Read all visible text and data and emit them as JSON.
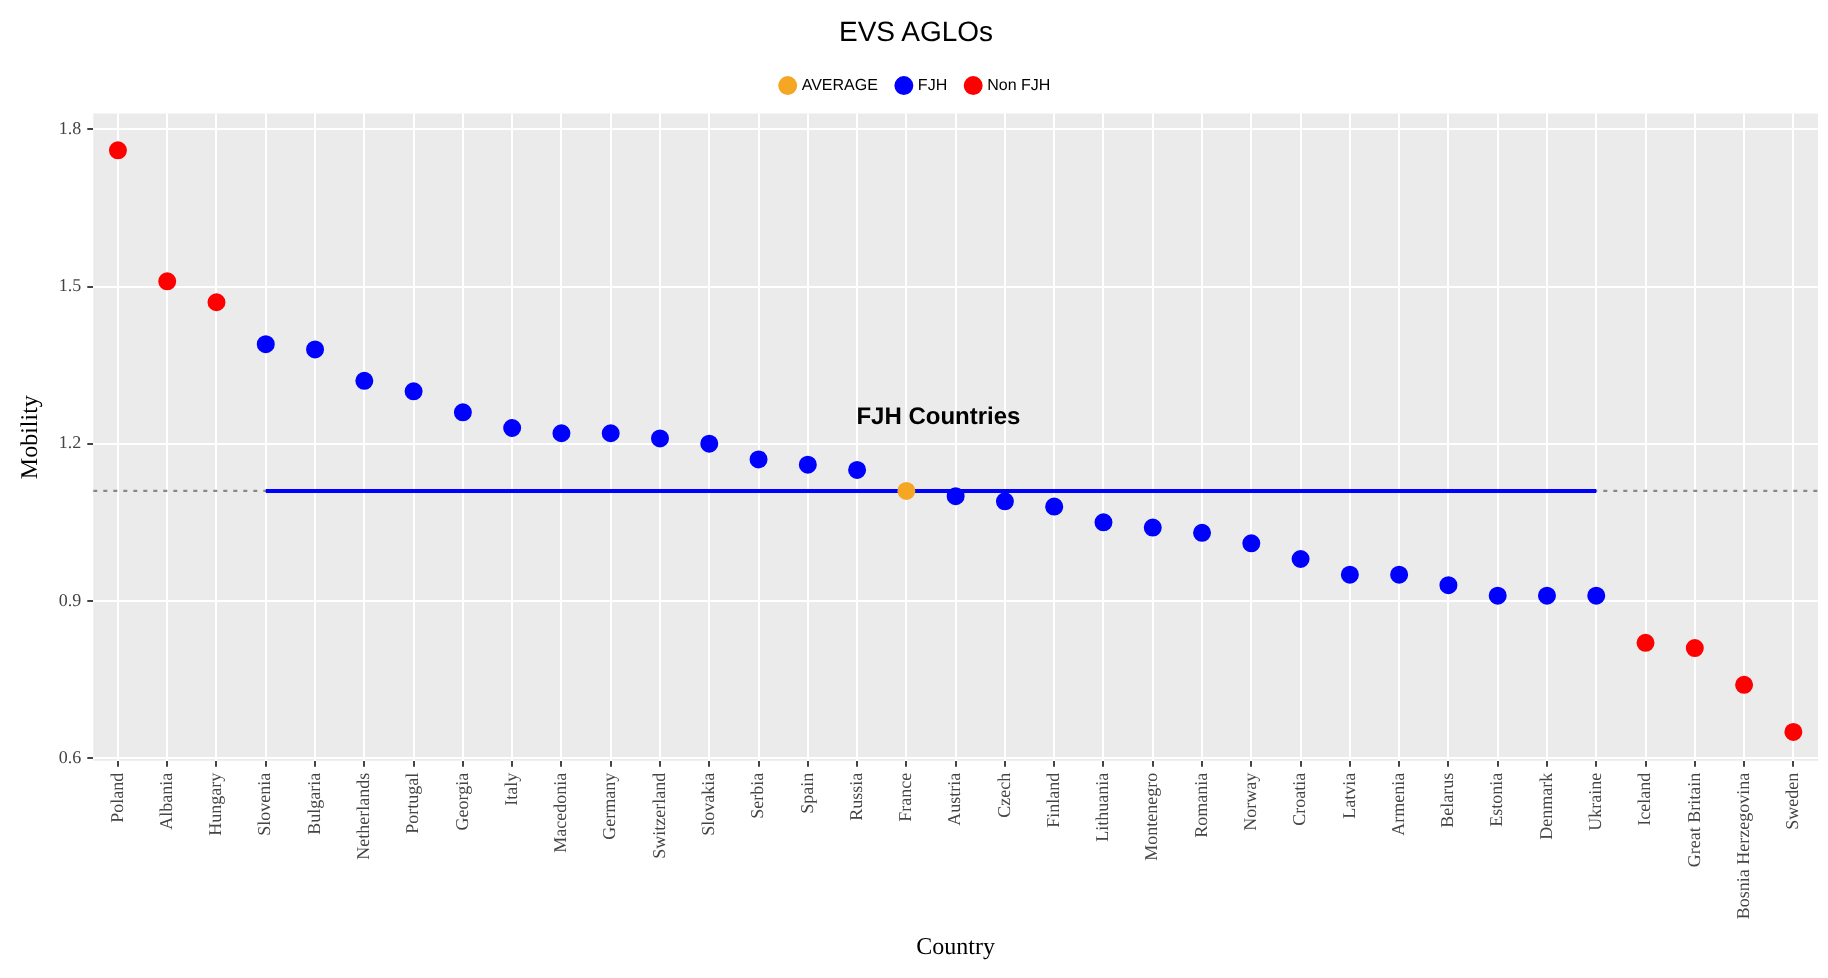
{
  "chart_data": {
    "type": "scatter",
    "title": "EVS AGLOs",
    "xlabel": "Country",
    "ylabel": "Mobility",
    "categories": [
      "Poland",
      "Albania",
      "Hungary",
      "Slovenia",
      "Bulgaria",
      "Netherlands",
      "Portugal",
      "Georgia",
      "Italy",
      "Macedonia",
      "Germany",
      "Switzerland",
      "Slovakia",
      "Serbia",
      "Spain",
      "Russia",
      "France",
      "Austria",
      "Czech",
      "Finland",
      "Lithuania",
      "Montenegro",
      "Romania",
      "Norway",
      "Croatia",
      "Latvia",
      "Armenia",
      "Belarus",
      "Estonia",
      "Denmark",
      "Ukraine",
      "Iceland",
      "Great Britain",
      "Bosnia Herzegovina",
      "Sweden"
    ],
    "series": [
      {
        "name": "AVERAGE",
        "color": "#f5a623",
        "values": [
          null,
          null,
          null,
          null,
          null,
          null,
          null,
          null,
          null,
          null,
          null,
          null,
          null,
          null,
          null,
          null,
          1.11,
          null,
          null,
          null,
          null,
          null,
          null,
          null,
          null,
          null,
          null,
          null,
          null,
          null,
          null,
          null,
          null,
          null,
          null
        ]
      },
      {
        "name": "FJH",
        "color": "#0000ff",
        "values": [
          null,
          null,
          null,
          1.39,
          1.38,
          1.32,
          1.3,
          1.26,
          1.23,
          1.22,
          1.22,
          1.21,
          1.2,
          1.17,
          1.16,
          1.15,
          null,
          1.1,
          1.09,
          1.08,
          1.05,
          1.04,
          1.03,
          1.01,
          0.98,
          0.95,
          0.95,
          0.93,
          0.91,
          0.91,
          0.91,
          null,
          null,
          null,
          null
        ]
      },
      {
        "name": "Non FJH",
        "color": "#ff0000",
        "values": [
          1.76,
          1.51,
          1.47,
          null,
          null,
          null,
          null,
          null,
          null,
          null,
          null,
          null,
          null,
          null,
          null,
          null,
          null,
          null,
          null,
          null,
          null,
          null,
          null,
          null,
          null,
          null,
          null,
          null,
          null,
          null,
          null,
          0.82,
          0.81,
          0.74,
          0.65
        ]
      },
      {
        "type": "line",
        "marker": "none",
        "color": "#0000ff",
        "values": [
          null,
          null,
          null,
          1.11,
          1.11,
          1.11,
          1.11,
          1.11,
          1.11,
          1.11,
          1.11,
          1.11,
          1.11,
          1.11,
          1.11,
          1.11,
          1.11,
          1.11,
          1.11,
          1.11,
          1.11,
          1.11,
          1.11,
          1.11,
          1.11,
          1.11,
          1.11,
          1.11,
          1.11,
          1.11,
          1.11,
          null,
          null,
          null,
          null
        ]
      }
    ],
    "ref_lines": [
      {
        "axis": "y",
        "value": 1.11,
        "color": "#888888",
        "line_style": "dotted"
      }
    ],
    "annotations": [
      "FJH Countries"
    ],
    "ylim": [
      0.595,
      1.83
    ],
    "yticks": [
      0.6,
      0.9,
      1.2,
      1.5,
      1.8
    ],
    "grid": true,
    "legend": "top",
    "marker": "circle"
  }
}
